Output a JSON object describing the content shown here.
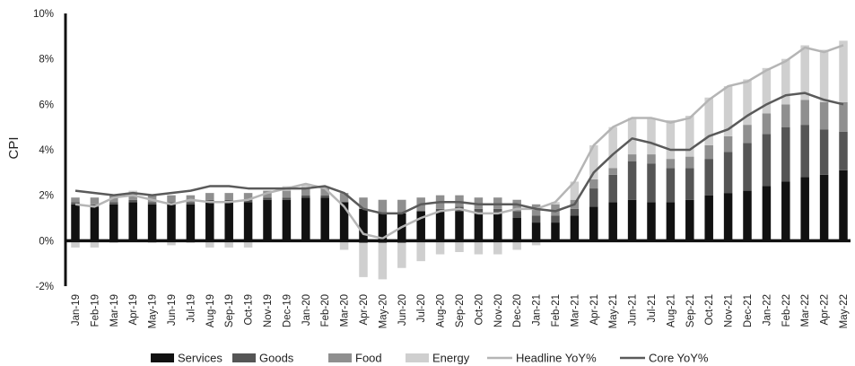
{
  "chart_data": {
    "type": "bar",
    "stacked": true,
    "title": "",
    "xlabel": "",
    "ylabel": "CPI",
    "ylim": [
      -2,
      10
    ],
    "yticks": [
      "-2%",
      "0%",
      "2%",
      "4%",
      "6%",
      "8%",
      "10%"
    ],
    "grid": false,
    "legend_position": "bottom",
    "categories": [
      "Jan-19",
      "Feb-19",
      "Mar-19",
      "Apr-19",
      "May-19",
      "Jun-19",
      "Jul-19",
      "Aug-19",
      "Sep-19",
      "Oct-19",
      "Nov-19",
      "Dec-19",
      "Jan-20",
      "Feb-20",
      "Mar-20",
      "Apr-20",
      "May-20",
      "Jun-20",
      "Jul-20",
      "Aug-20",
      "Sep-20",
      "Oct-20",
      "Nov-20",
      "Dec-20",
      "Jan-21",
      "Feb-21",
      "Mar-21",
      "Apr-21",
      "May-21",
      "Jun-21",
      "Jul-21",
      "Aug-21",
      "Sep-21",
      "Oct-21",
      "Nov-21",
      "Dec-21",
      "Jan-22",
      "Feb-22",
      "Mar-22",
      "Apr-22",
      "May-22"
    ],
    "tick_labels": [
      "Jan-19",
      "Feb-19",
      "Mar-19",
      "Apr-19",
      "May-19",
      "Jun-19",
      "Jul-19",
      "Aug-19",
      "Sep-19",
      "Oct-19",
      "Nov-19",
      "Dec-19",
      "Jan-20",
      "Feb-20",
      "Mar-20",
      "Apr-20",
      "May-20",
      "Jun-20",
      "Jul-20",
      "Aug-20",
      "Sep-20",
      "Oct-20",
      "Nov-20",
      "Dec-20",
      "Jan-21",
      "Feb-21",
      "Mar-21",
      "Apr-21",
      "May-21",
      "Jun-21",
      "Jul-21",
      "Aug-21",
      "Sep-21",
      "Oct-21",
      "Nov-21",
      "Dec-21",
      "Jan-22",
      "Feb-22",
      "Mar-22",
      "Apr-22",
      "May-22"
    ],
    "series": [
      {
        "name": "Services",
        "kind": "bar",
        "color": "#111111",
        "values": [
          1.6,
          1.5,
          1.6,
          1.7,
          1.6,
          1.6,
          1.6,
          1.7,
          1.7,
          1.7,
          1.8,
          1.8,
          1.9,
          1.9,
          1.7,
          1.4,
          1.2,
          1.2,
          1.3,
          1.3,
          1.3,
          1.2,
          1.2,
          1.0,
          0.8,
          0.8,
          1.1,
          1.5,
          1.7,
          1.8,
          1.7,
          1.7,
          1.8,
          2.0,
          2.1,
          2.2,
          2.4,
          2.6,
          2.8,
          2.9,
          3.1
        ]
      },
      {
        "name": "Goods",
        "kind": "bar",
        "color": "#555555",
        "values": [
          0.1,
          0.1,
          0.1,
          0.1,
          0.1,
          0.1,
          0.1,
          0.1,
          0.1,
          0.1,
          0.1,
          0.1,
          0.1,
          0.1,
          0.0,
          -0.1,
          -0.1,
          -0.1,
          0.0,
          0.1,
          0.2,
          0.2,
          0.2,
          0.3,
          0.3,
          0.3,
          0.3,
          0.8,
          1.2,
          1.7,
          1.7,
          1.5,
          1.4,
          1.6,
          1.8,
          2.1,
          2.3,
          2.4,
          2.3,
          2.0,
          1.7
        ]
      },
      {
        "name": "Food",
        "kind": "bar",
        "color": "#8f8f8f",
        "values": [
          0.2,
          0.3,
          0.3,
          0.3,
          0.3,
          0.3,
          0.3,
          0.3,
          0.3,
          0.3,
          0.3,
          0.3,
          0.3,
          0.3,
          0.4,
          0.5,
          0.6,
          0.6,
          0.6,
          0.6,
          0.5,
          0.5,
          0.5,
          0.5,
          0.5,
          0.5,
          0.4,
          0.4,
          0.3,
          0.3,
          0.4,
          0.4,
          0.5,
          0.6,
          0.7,
          0.8,
          0.9,
          1.0,
          1.1,
          1.2,
          1.3
        ]
      },
      {
        "name": "Energy",
        "kind": "bar",
        "color": "#cfcfcf",
        "values": [
          -0.3,
          -0.3,
          -0.1,
          0.1,
          -0.1,
          -0.2,
          -0.1,
          -0.3,
          -0.3,
          -0.3,
          0.0,
          0.2,
          0.2,
          0.1,
          -0.4,
          -1.5,
          -1.6,
          -1.1,
          -0.9,
          -0.6,
          -0.5,
          -0.6,
          -0.6,
          -0.4,
          -0.2,
          0.1,
          0.8,
          1.5,
          1.8,
          1.6,
          1.6,
          1.7,
          1.8,
          2.1,
          2.2,
          2.0,
          2.0,
          2.0,
          2.4,
          2.3,
          2.7
        ]
      },
      {
        "name": "Headline YoY%",
        "kind": "line",
        "color": "#b5b5b5",
        "values": [
          1.6,
          1.5,
          1.9,
          2.0,
          1.8,
          1.6,
          1.8,
          1.7,
          1.7,
          1.8,
          2.1,
          2.3,
          2.5,
          2.3,
          1.5,
          0.3,
          0.1,
          0.6,
          1.0,
          1.3,
          1.4,
          1.2,
          1.2,
          1.4,
          1.4,
          1.7,
          2.6,
          4.2,
          5.0,
          5.4,
          5.4,
          5.2,
          5.4,
          6.2,
          6.8,
          7.0,
          7.5,
          7.9,
          8.5,
          8.3,
          8.6
        ]
      },
      {
        "name": "Core YoY%",
        "kind": "line",
        "color": "#5a5a5a",
        "values": [
          2.2,
          2.1,
          2.0,
          2.1,
          2.0,
          2.1,
          2.2,
          2.4,
          2.4,
          2.3,
          2.3,
          2.3,
          2.3,
          2.4,
          2.1,
          1.4,
          1.2,
          1.2,
          1.6,
          1.7,
          1.7,
          1.6,
          1.6,
          1.6,
          1.4,
          1.3,
          1.6,
          3.0,
          3.8,
          4.5,
          4.3,
          4.0,
          4.0,
          4.6,
          4.9,
          5.5,
          6.0,
          6.4,
          6.5,
          6.2,
          6.0
        ]
      }
    ]
  }
}
